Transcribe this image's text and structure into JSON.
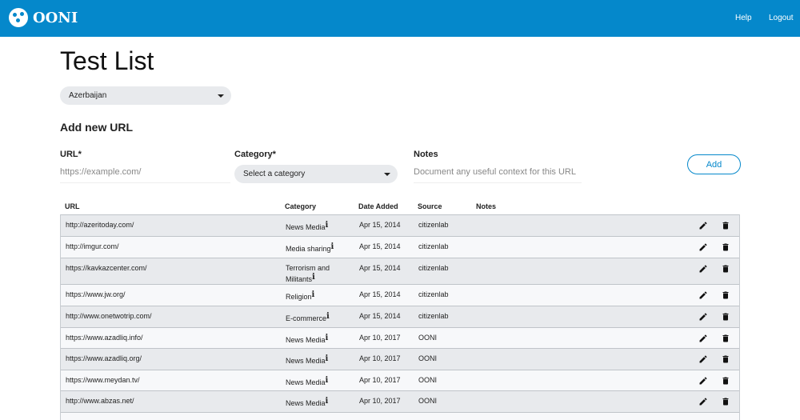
{
  "nav": {
    "brand": "OONI",
    "help": "Help",
    "logout": "Logout"
  },
  "page_title": "Test List",
  "country_select": {
    "value": "Azerbaijan"
  },
  "add_form": {
    "heading": "Add new URL",
    "url_label": "URL*",
    "url_placeholder": "https://example.com/",
    "category_label": "Category*",
    "category_placeholder": "Select a category",
    "notes_label": "Notes",
    "notes_placeholder": "Document any useful context for this URL",
    "add_label": "Add"
  },
  "table": {
    "headers": {
      "url": "URL",
      "category": "Category",
      "date": "Date Added",
      "source": "Source",
      "notes": "Notes"
    },
    "rows": [
      {
        "url": "http://azeritoday.com/",
        "category": "News Media",
        "date": "Apr 15, 2014",
        "source": "citizenlab",
        "notes": ""
      },
      {
        "url": "http://imgur.com/",
        "category": "Media sharing",
        "date": "Apr 15, 2014",
        "source": "citizenlab",
        "notes": ""
      },
      {
        "url": "https://kavkazcenter.com/",
        "category": "Terrorism and Militants",
        "date": "Apr 15, 2014",
        "source": "citizenlab",
        "notes": ""
      },
      {
        "url": "https://www.jw.org/",
        "category": "Religion",
        "date": "Apr 15, 2014",
        "source": "citizenlab",
        "notes": ""
      },
      {
        "url": "http://www.onetwotrip.com/",
        "category": "E-commerce",
        "date": "Apr 15, 2014",
        "source": "citizenlab",
        "notes": ""
      },
      {
        "url": "https://www.azadliq.info/",
        "category": "News Media",
        "date": "Apr 10, 2017",
        "source": "OONI",
        "notes": ""
      },
      {
        "url": "https://www.azadliq.org/",
        "category": "News Media",
        "date": "Apr 10, 2017",
        "source": "OONI",
        "notes": ""
      },
      {
        "url": "https://www.meydan.tv/",
        "category": "News Media",
        "date": "Apr 10, 2017",
        "source": "OONI",
        "notes": ""
      },
      {
        "url": "http://www.abzas.net/",
        "category": "News Media",
        "date": "Apr 10, 2017",
        "source": "OONI",
        "notes": ""
      }
    ],
    "info_glyph": "i"
  },
  "colors": {
    "brand": "#0588cb"
  }
}
